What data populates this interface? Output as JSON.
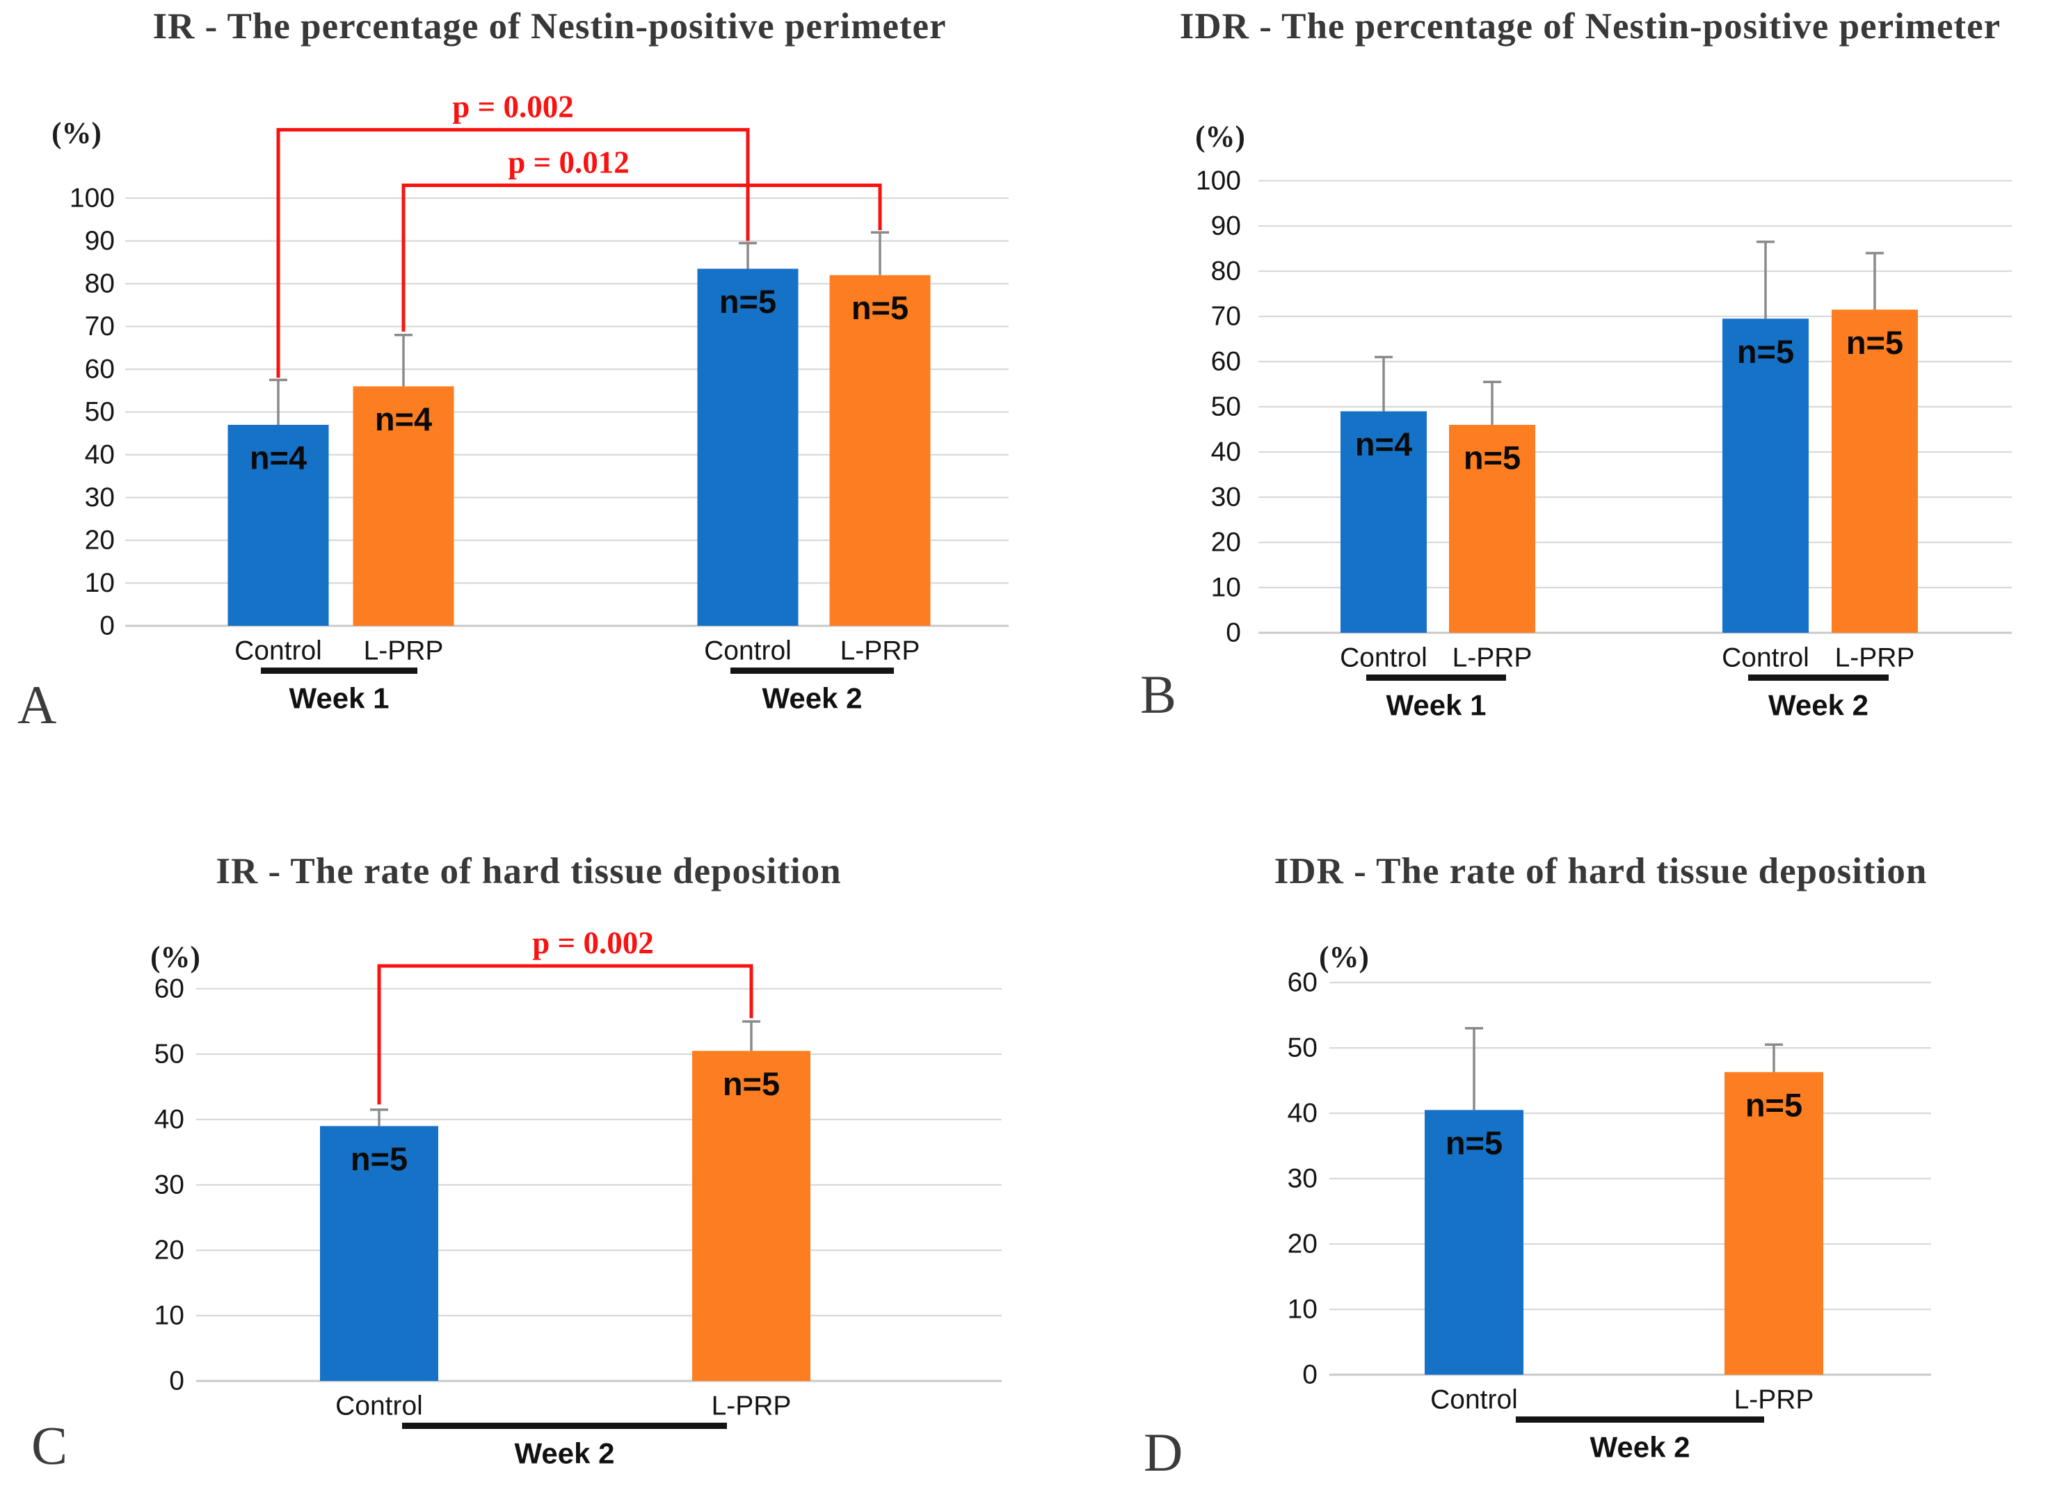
{
  "styles": {
    "series_colors": {
      "Control": "#1672c7",
      "L-PRP": "#fc7e21"
    },
    "significance_red": "#f81311",
    "gridline_color": "#d9d9d9",
    "baseline_color": "#c9c9c9",
    "error_bar_color": "#8a8a8a",
    "week_bar_color": "#141414",
    "title_color": "#383838",
    "background": "#ffffff"
  },
  "chart_data": [
    {
      "type": "bar",
      "panel_letter": "A",
      "title": "IR - The percentage of Nestin-positive perimeter",
      "ylabel": "(%)",
      "ylim": [
        0,
        100
      ],
      "ytick_step": 10,
      "grid": true,
      "legend": "none",
      "group_labels": [
        "Week 1",
        "Week 2"
      ],
      "categories": [
        "Week 1 Control",
        "Week 1 L-PRP",
        "Week 2 Control",
        "Week 2 L-PRP"
      ],
      "bar_axis_labels": [
        "Control",
        "L-PRP",
        "Control",
        "L-PRP"
      ],
      "values": [
        47,
        56,
        83.5,
        82
      ],
      "error_tops": [
        57.5,
        68,
        89.5,
        92
      ],
      "n_labels": [
        "n=4",
        "n=4",
        "n=5",
        "n=5"
      ],
      "significance": [
        {
          "label": "p = 0.002",
          "from_bar": 0,
          "to_bar": 2,
          "top_value": 116,
          "from_drop_value": 58,
          "to_drop_value": 90,
          "label_shift": 0
        },
        {
          "label": "p = 0.012",
          "from_bar": 1,
          "to_bar": 3,
          "top_value": 103,
          "from_drop_value": 68.8,
          "to_drop_value": 92.5,
          "label_shift": -105
        }
      ]
    },
    {
      "type": "bar",
      "panel_letter": "B",
      "title": "IDR - The percentage of Nestin-positive perimeter",
      "ylabel": "(%)",
      "ylim": [
        0,
        100
      ],
      "ytick_step": 10,
      "grid": true,
      "legend": "none",
      "group_labels": [
        "Week 1",
        "Week 2"
      ],
      "categories": [
        "Week 1 Control",
        "Week 1 L-PRP",
        "Week 2 Control",
        "Week 2 L-PRP"
      ],
      "bar_axis_labels": [
        "Control",
        "L-PRP",
        "Control",
        "L-PRP"
      ],
      "values": [
        49,
        46,
        69.5,
        71.5
      ],
      "error_tops": [
        61,
        55.5,
        86.5,
        84
      ],
      "n_labels": [
        "n=4",
        "n=5",
        "n=5",
        "n=5"
      ],
      "significance": []
    },
    {
      "type": "bar",
      "panel_letter": "C",
      "title": "IR - The rate of hard tissue deposition",
      "ylabel": "(%)",
      "ylim": [
        0,
        60
      ],
      "ytick_step": 10,
      "grid": true,
      "legend": "none",
      "group_labels": [
        "Week 2"
      ],
      "categories": [
        "Week 2 Control",
        "Week 2 L-PRP"
      ],
      "bar_axis_labels": [
        "Control",
        "L-PRP"
      ],
      "values": [
        39,
        50.5
      ],
      "error_tops": [
        41.5,
        55
      ],
      "n_labels": [
        "n=5",
        "n=5"
      ],
      "significance": [
        {
          "label": "p = 0.002",
          "from_bar": 0,
          "to_bar": 1,
          "top_value": 63.5,
          "from_drop_value": 42.3,
          "to_drop_value": 55.5,
          "label_shift": 40
        }
      ]
    },
    {
      "type": "bar",
      "panel_letter": "D",
      "title": "IDR - The rate of hard tissue deposition",
      "ylabel": "(%)",
      "ylim": [
        0,
        60
      ],
      "ytick_step": 10,
      "grid": true,
      "legend": "none",
      "group_labels": [
        "Week 2"
      ],
      "categories": [
        "Week 2 Control",
        "Week 2 L-PRP"
      ],
      "bar_axis_labels": [
        "Control",
        "L-PRP"
      ],
      "values": [
        40.5,
        46.3
      ],
      "error_tops": [
        53,
        50.5
      ],
      "n_labels": [
        "n=5",
        "n=5"
      ],
      "significance": []
    }
  ]
}
